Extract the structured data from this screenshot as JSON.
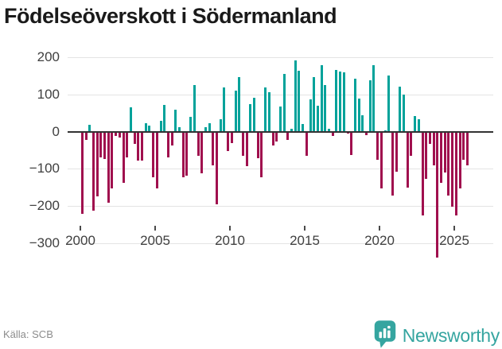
{
  "title": "Födelseöverskott i Södermanland",
  "source": "Källa: SCB",
  "logo": {
    "brand": "Newsworthy",
    "badge_icon": "bar-chart-badge-icon",
    "brand_color": "#35a5a0"
  },
  "colors": {
    "positive": "#00A29A",
    "negative": "#A0104E",
    "grid": "#e4e4e4",
    "zero_line": "#333333",
    "axis_text": "#404040",
    "muted_text": "#8c8c8c",
    "title_text": "#1a1a1a"
  },
  "chart_data": {
    "type": "bar",
    "title": "Födelseöverskott i Södermanland",
    "x_ticks": [
      2000,
      2005,
      2010,
      2015,
      2020,
      2025
    ],
    "x_tick_labels": [
      "2000",
      "2005",
      "2010",
      "2015",
      "2020",
      "2025"
    ],
    "y_ticks": [
      200,
      100,
      0,
      -100,
      -200,
      -300
    ],
    "y_tick_labels": [
      "200",
      "100",
      "0",
      "−100",
      "−200",
      "−300"
    ],
    "ylim": [
      -350,
      225
    ],
    "grid": true,
    "legend": false,
    "bar_period": "quarterly",
    "values_by_year": {
      "2000": [
        -220,
        -20,
        18,
        -210
      ],
      "2001": [
        -172,
        -67,
        -71,
        -189
      ],
      "2002": [
        -151,
        -10,
        -14,
        -135
      ],
      "2003": [
        -67,
        66,
        -30,
        -75
      ],
      "2004": [
        -75,
        22,
        17,
        -120
      ],
      "2005": [
        -151,
        28,
        72,
        -67
      ],
      "2006": [
        -35,
        58,
        11,
        -120
      ],
      "2007": [
        -116,
        40,
        125,
        -64
      ],
      "2008": [
        -110,
        11,
        22,
        -89
      ],
      "2009": [
        -193,
        34,
        118,
        -51
      ],
      "2010": [
        -29,
        110,
        146,
        -64
      ],
      "2011": [
        -90,
        74,
        92,
        -69
      ],
      "2012": [
        -122,
        119,
        105,
        -36
      ],
      "2013": [
        -25,
        68,
        155,
        -20
      ],
      "2014": [
        7,
        191,
        163,
        21
      ],
      "2015": [
        -64,
        86,
        147,
        70
      ],
      "2016": [
        178,
        125,
        8,
        -10
      ],
      "2017": [
        165,
        162,
        160,
        -4
      ],
      "2018": [
        -61,
        143,
        89,
        44
      ],
      "2019": [
        -7,
        139,
        178,
        -74
      ],
      "2020": [
        -151,
        4,
        150,
        -170
      ],
      "2021": [
        -106,
        121,
        99,
        -149
      ],
      "2022": [
        -63,
        42,
        34,
        -224
      ],
      "2023": [
        -126,
        -31,
        -89,
        -337
      ],
      "2024": [
        -136,
        -108,
        -170,
        -200
      ],
      "2025": [
        -224,
        -151,
        -74,
        -88
      ]
    }
  }
}
